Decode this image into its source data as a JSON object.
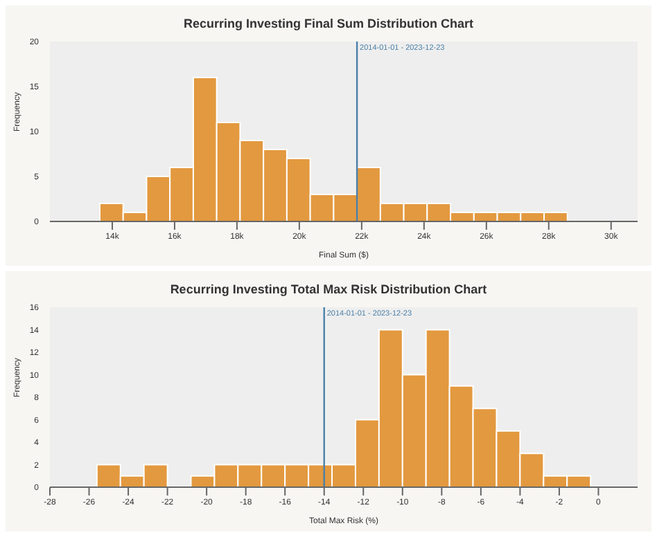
{
  "chart_data": [
    {
      "type": "histogram",
      "title": "Recurring Investing Final Sum Distribution Chart",
      "xlabel": "Final Sum ($)",
      "ylabel": "Frequency",
      "color": "#e3993f",
      "bins": [
        13600,
        14350,
        15100,
        15850,
        16600,
        17350,
        18100,
        18850,
        19600,
        20350,
        21100,
        21850,
        22600,
        23350,
        24100,
        24850,
        25600,
        26350,
        27100,
        27850,
        28600
      ],
      "values": [
        2,
        1,
        5,
        6,
        16,
        11,
        9,
        8,
        7,
        3,
        3,
        6,
        2,
        2,
        2,
        1,
        1,
        1,
        1,
        1
      ],
      "xlim": [
        12000,
        30850
      ],
      "xticks": [
        {
          "value": 14000,
          "label": "14k"
        },
        {
          "value": 16000,
          "label": "16k"
        },
        {
          "value": 18000,
          "label": "18k"
        },
        {
          "value": 20000,
          "label": "20k"
        },
        {
          "value": 22000,
          "label": "22k"
        },
        {
          "value": 24000,
          "label": "24k"
        },
        {
          "value": 26000,
          "label": "26k"
        },
        {
          "value": 28000,
          "label": "28k"
        },
        {
          "value": 30000,
          "label": "30k"
        }
      ],
      "ylim": [
        0,
        20
      ],
      "yticks": [
        0,
        5,
        10,
        15,
        20
      ],
      "annotations": [
        "2014-01-01 - 2023-12-23"
      ],
      "ref_lines": [
        {
          "axis": "x",
          "value": 21850,
          "color": "#4a7fa8"
        }
      ]
    },
    {
      "type": "histogram",
      "title": "Recurring Investing Total Max Risk Distribution Chart",
      "xlabel": "Total Max Risk (%)",
      "ylabel": "Frequency",
      "color": "#e3993f",
      "bins": [
        -25.6,
        -24.4,
        -23.2,
        -22,
        -20.8,
        -19.6,
        -18.4,
        -17.2,
        -16,
        -14.8,
        -13.6,
        -12.4,
        -11.2,
        -10,
        -8.8,
        -7.6,
        -6.4,
        -5.2,
        -4,
        -2.8,
        -1.6,
        -0.4
      ],
      "values": [
        2,
        1,
        2,
        0,
        1,
        2,
        2,
        2,
        2,
        2,
        2,
        6,
        14,
        10,
        14,
        9,
        7,
        5,
        3,
        1,
        1
      ],
      "xlim": [
        -28,
        2
      ],
      "xticks": [
        -28,
        -26,
        -24,
        -22,
        -20,
        -18,
        -16,
        -14,
        -12,
        -10,
        -8,
        -6,
        -4,
        -2,
        0
      ],
      "ylim": [
        0,
        16
      ],
      "yticks": [
        0,
        2,
        4,
        6,
        8,
        10,
        12,
        14,
        16
      ],
      "annotations": [
        "2014-01-01 - 2023-12-23"
      ],
      "ref_lines": [
        {
          "axis": "x",
          "value": -14,
          "color": "#4a7fa8"
        }
      ]
    }
  ]
}
